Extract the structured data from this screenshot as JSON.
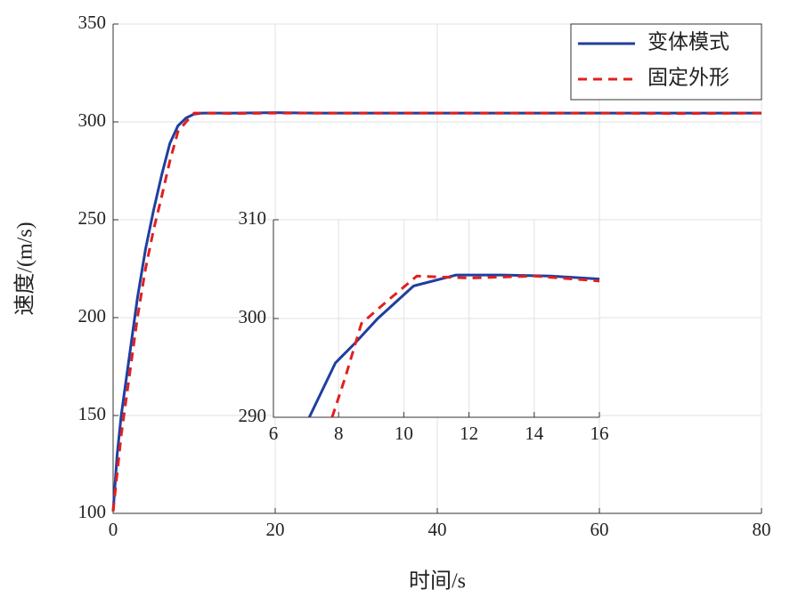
{
  "chart_data": [
    {
      "type": "line",
      "xlabel": "时间/s",
      "ylabel": "速度/(m/s)",
      "xlim": [
        0,
        80
      ],
      "ylim": [
        100,
        350
      ],
      "xticks": [
        0,
        20,
        40,
        60,
        80
      ],
      "yticks": [
        100,
        150,
        200,
        250,
        300,
        350
      ],
      "grid": true,
      "legend": "upper right",
      "series": [
        {
          "name": "变体模式",
          "color": "#1f3f9f",
          "linestyle": "solid",
          "x": [
            0,
            0.5,
            1,
            2,
            3,
            4,
            5,
            6,
            7,
            8,
            9,
            10,
            11,
            12,
            15,
            20,
            25,
            30,
            40,
            50,
            60,
            70,
            80
          ],
          "values": [
            101,
            130,
            150,
            180,
            210,
            235,
            255,
            273,
            289,
            298,
            302,
            304,
            304.5,
            304.5,
            304.5,
            304.7,
            304.5,
            304.5,
            304.5,
            304.5,
            304.5,
            304.5,
            304.5
          ]
        },
        {
          "name": "固定外形",
          "color": "#e02020",
          "linestyle": "dashed",
          "x": [
            0,
            1,
            2,
            3,
            4,
            5,
            6,
            7,
            8,
            9,
            10,
            11,
            15,
            20,
            30,
            40,
            50,
            60,
            70,
            80
          ],
          "values": [
            101,
            140,
            170,
            200,
            225,
            245,
            262,
            280,
            295,
            300,
            304.5,
            304.5,
            304.3,
            304.5,
            304.5,
            304.5,
            304.5,
            304.5,
            304.3,
            304.5
          ]
        }
      ]
    },
    {
      "type": "line",
      "xlim": [
        6,
        16
      ],
      "ylim": [
        290,
        310
      ],
      "xticks": [
        6,
        8,
        10,
        12,
        14,
        16
      ],
      "yticks": [
        290,
        300,
        310
      ],
      "grid": true,
      "series": [
        {
          "color": "#1f3f9f",
          "linestyle": "solid",
          "x": [
            7.1,
            7.9,
            8.5,
            9.2,
            10.3,
            11.6,
            13,
            14.5,
            16
          ],
          "values": [
            290,
            295.5,
            297.5,
            300,
            303.3,
            304.4,
            304.4,
            304.3,
            304
          ]
        },
        {
          "color": "#e02020",
          "linestyle": "dashed",
          "x": [
            7.8,
            8.2,
            8.7,
            9.5,
            10.4,
            12,
            14,
            16
          ],
          "values": [
            290,
            294,
            299.5,
            301.8,
            304.3,
            304.1,
            304.3,
            303.8
          ]
        }
      ]
    }
  ]
}
